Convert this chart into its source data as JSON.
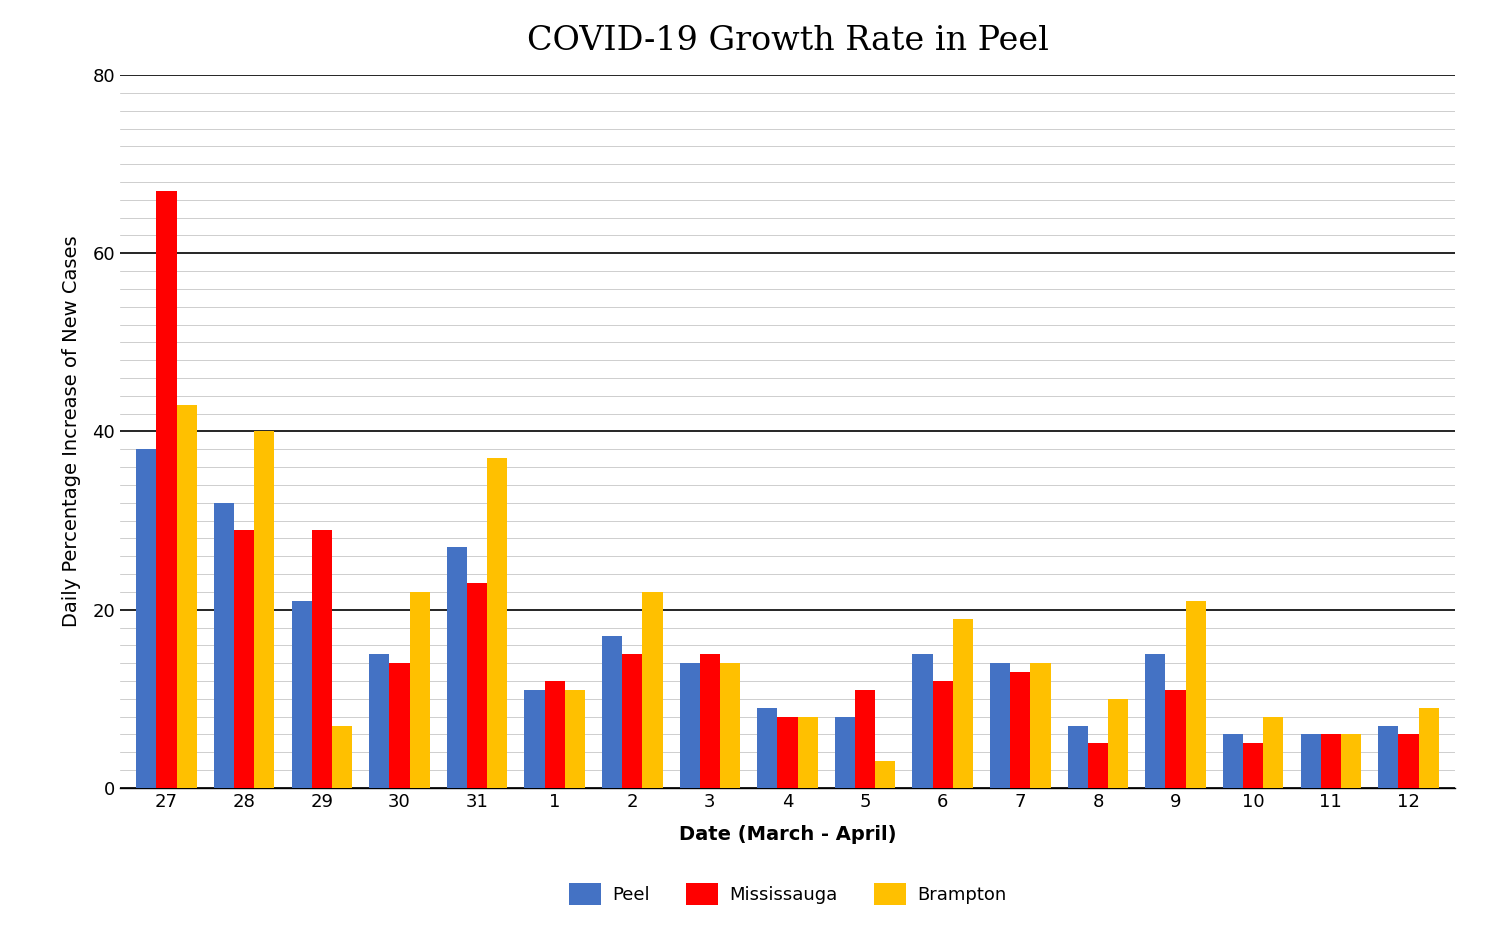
{
  "title": "COVID-19 Growth Rate in Peel",
  "xlabel": "Date (March - April)",
  "ylabel": "Daily Percentage Increase of New Cases",
  "categories": [
    "27",
    "28",
    "29",
    "30",
    "31",
    "1",
    "2",
    "3",
    "4",
    "5",
    "6",
    "7",
    "8",
    "9",
    "10",
    "11",
    "12"
  ],
  "peel": [
    38,
    32,
    21,
    15,
    27,
    11,
    17,
    14,
    9,
    8,
    15,
    14,
    7,
    15,
    6,
    6,
    7
  ],
  "mississauga": [
    67,
    29,
    29,
    14,
    23,
    12,
    15,
    15,
    8,
    11,
    12,
    13,
    5,
    11,
    5,
    6,
    6
  ],
  "brampton": [
    43,
    40,
    7,
    22,
    37,
    11,
    22,
    14,
    8,
    3,
    19,
    14,
    10,
    21,
    8,
    6,
    9
  ],
  "peel_color": "#4472C4",
  "mississauga_color": "#FF0000",
  "brampton_color": "#FFC000",
  "ylim": [
    0,
    80
  ],
  "yticks": [
    0,
    20,
    40,
    60,
    80
  ],
  "background_color": "#FFFFFF",
  "title_fontsize": 24,
  "axis_label_fontsize": 14,
  "tick_fontsize": 13,
  "legend_fontsize": 13,
  "bar_width": 0.26,
  "minor_grid_color": "#BBBBBB",
  "major_grid_color": "#000000",
  "minor_grid_step": 2,
  "major_grid_step": 20
}
